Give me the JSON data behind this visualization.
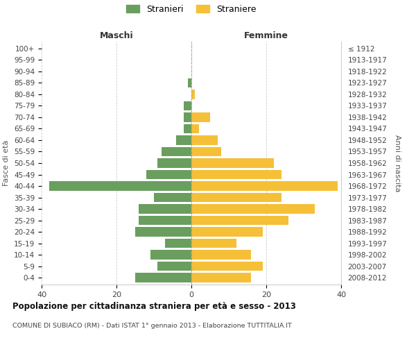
{
  "age_groups": [
    "0-4",
    "5-9",
    "10-14",
    "15-19",
    "20-24",
    "25-29",
    "30-34",
    "35-39",
    "40-44",
    "45-49",
    "50-54",
    "55-59",
    "60-64",
    "65-69",
    "70-74",
    "75-79",
    "80-84",
    "85-89",
    "90-94",
    "95-99",
    "100+"
  ],
  "birth_years": [
    "2008-2012",
    "2003-2007",
    "1998-2002",
    "1993-1997",
    "1988-1992",
    "1983-1987",
    "1978-1982",
    "1973-1977",
    "1968-1972",
    "1963-1967",
    "1958-1962",
    "1953-1957",
    "1948-1952",
    "1943-1947",
    "1938-1942",
    "1933-1937",
    "1928-1932",
    "1923-1927",
    "1918-1922",
    "1913-1917",
    "≤ 1912"
  ],
  "maschi": [
    15,
    9,
    11,
    7,
    15,
    14,
    14,
    10,
    38,
    12,
    9,
    8,
    4,
    2,
    2,
    2,
    0,
    1,
    0,
    0,
    0
  ],
  "femmine": [
    16,
    19,
    16,
    12,
    19,
    26,
    33,
    24,
    39,
    24,
    22,
    8,
    7,
    2,
    5,
    0,
    1,
    0,
    0,
    0,
    0
  ],
  "male_color": "#6a9e5f",
  "female_color": "#f5c037",
  "background_color": "#ffffff",
  "grid_color": "#cccccc",
  "title": "Popolazione per cittadinanza straniera per età e sesso - 2013",
  "subtitle": "COMUNE DI SUBIACO (RM) - Dati ISTAT 1° gennaio 2013 - Elaborazione TUTTITALIA.IT",
  "xlabel_left": "Maschi",
  "xlabel_right": "Femmine",
  "ylabel_left": "Fasce di età",
  "ylabel_right": "Anni di nascita",
  "legend_male": "Stranieri",
  "legend_female": "Straniere",
  "xlim": 40,
  "bar_height": 0.8
}
